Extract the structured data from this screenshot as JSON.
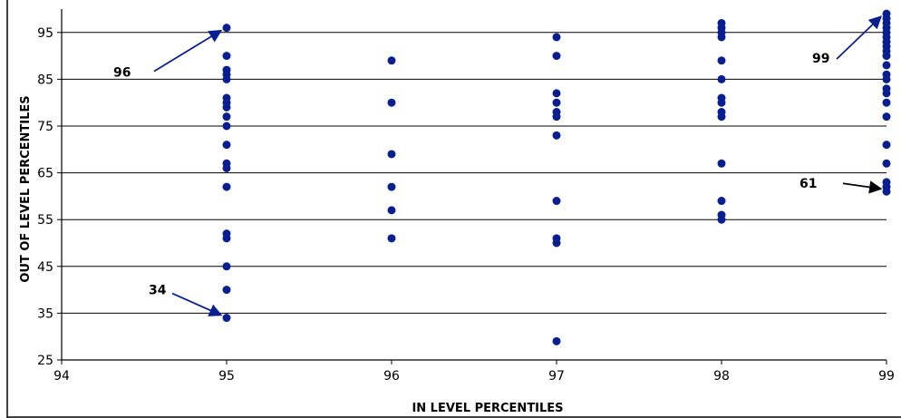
{
  "chart_data": {
    "type": "scatter",
    "title": "",
    "xlabel": "IN LEVEL PERCENTILES",
    "ylabel": "OUT OF LEVEL PERCENTILES",
    "xlim": [
      94,
      99
    ],
    "ylim": [
      25,
      100
    ],
    "xticks": [
      94,
      95,
      96,
      97,
      98,
      99
    ],
    "yticks": [
      25,
      35,
      45,
      55,
      65,
      75,
      85,
      95
    ],
    "grid": "horizontal",
    "legend": "none",
    "point_color": "#0a1f8f",
    "line_color": "#000000",
    "series": [
      {
        "points": [
          [
            95,
            96
          ],
          [
            95,
            90
          ],
          [
            95,
            87
          ],
          [
            95,
            86
          ],
          [
            95,
            85
          ],
          [
            95,
            81
          ],
          [
            95,
            80
          ],
          [
            95,
            79
          ],
          [
            95,
            77
          ],
          [
            95,
            75
          ],
          [
            95,
            71
          ],
          [
            95,
            67
          ],
          [
            95,
            66
          ],
          [
            95,
            62
          ],
          [
            95,
            52
          ],
          [
            95,
            51
          ],
          [
            95,
            45
          ],
          [
            95,
            40
          ],
          [
            95,
            34
          ],
          [
            96,
            89
          ],
          [
            96,
            80
          ],
          [
            96,
            69
          ],
          [
            96,
            62
          ],
          [
            96,
            57
          ],
          [
            96,
            51
          ],
          [
            97,
            94
          ],
          [
            97,
            90
          ],
          [
            97,
            82
          ],
          [
            97,
            80
          ],
          [
            97,
            78
          ],
          [
            97,
            77
          ],
          [
            97,
            73
          ],
          [
            97,
            59
          ],
          [
            97,
            51
          ],
          [
            97,
            50
          ],
          [
            97,
            29
          ],
          [
            98,
            97
          ],
          [
            98,
            96
          ],
          [
            98,
            95
          ],
          [
            98,
            94
          ],
          [
            98,
            89
          ],
          [
            98,
            85
          ],
          [
            98,
            81
          ],
          [
            98,
            80
          ],
          [
            98,
            78
          ],
          [
            98,
            77
          ],
          [
            98,
            67
          ],
          [
            98,
            59
          ],
          [
            98,
            56
          ],
          [
            98,
            55
          ],
          [
            99,
            99
          ],
          [
            99,
            98
          ],
          [
            99,
            97
          ],
          [
            99,
            96
          ],
          [
            99,
            95
          ],
          [
            99,
            94
          ],
          [
            99,
            93
          ],
          [
            99,
            92
          ],
          [
            99,
            91
          ],
          [
            99,
            90
          ],
          [
            99,
            88
          ],
          [
            99,
            86
          ],
          [
            99,
            85
          ],
          [
            99,
            83
          ],
          [
            99,
            82
          ],
          [
            99,
            80
          ],
          [
            99,
            77
          ],
          [
            99,
            71
          ],
          [
            99,
            67
          ],
          [
            99,
            63
          ],
          [
            99,
            62
          ],
          [
            99,
            61
          ]
        ]
      }
    ],
    "annotations": [
      {
        "text": "96",
        "x": 95,
        "y": 96,
        "color": "#0a1f8f"
      },
      {
        "text": "99",
        "x": 99,
        "y": 99,
        "color": "#0a1f8f"
      },
      {
        "text": "61",
        "x": 99,
        "y": 61,
        "color": "#000000"
      },
      {
        "text": "34",
        "x": 95,
        "y": 34,
        "color": "#0a1f8f"
      }
    ]
  }
}
